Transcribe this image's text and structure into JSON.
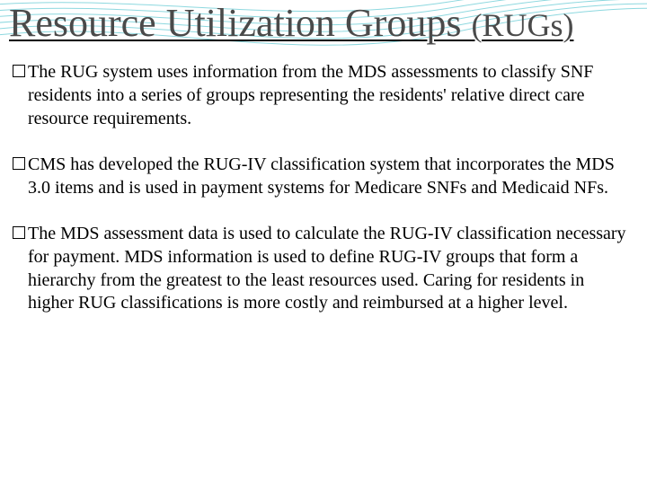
{
  "slide": {
    "title_main": "Resource Utilization Groups ",
    "title_sub": "(RUGs)",
    "title_color": "#4a4a4a",
    "title_main_fontsize": 44,
    "title_sub_fontsize": 36,
    "underline": true,
    "background_color": "#ffffff",
    "body_fontsize": 20,
    "body_color": "#000000",
    "bullet_style": "hollow-square",
    "bullets": [
      "The RUG system uses information from the MDS assessments to classify SNF residents into a series of groups representing the residents' relative direct care resource requirements.",
      "CMS has developed the RUG-IV classification system that incorporates the MDS 3.0 items and is used in payment systems for Medicare SNFs and Medicaid NFs.",
      "The MDS assessment data is used to calculate the RUG-IV classification necessary for payment.  MDS information is used to define RUG-IV groups that form a hierarchy from the greatest to the least resources used.  Caring for residents in higher RUG classifications is more costly and reimbursed at a higher level."
    ],
    "decoration": {
      "type": "wave-lines",
      "stroke_color": "#2fb8c5",
      "stroke_opacity": 0.55,
      "stroke_width": 1,
      "line_count": 6
    }
  }
}
